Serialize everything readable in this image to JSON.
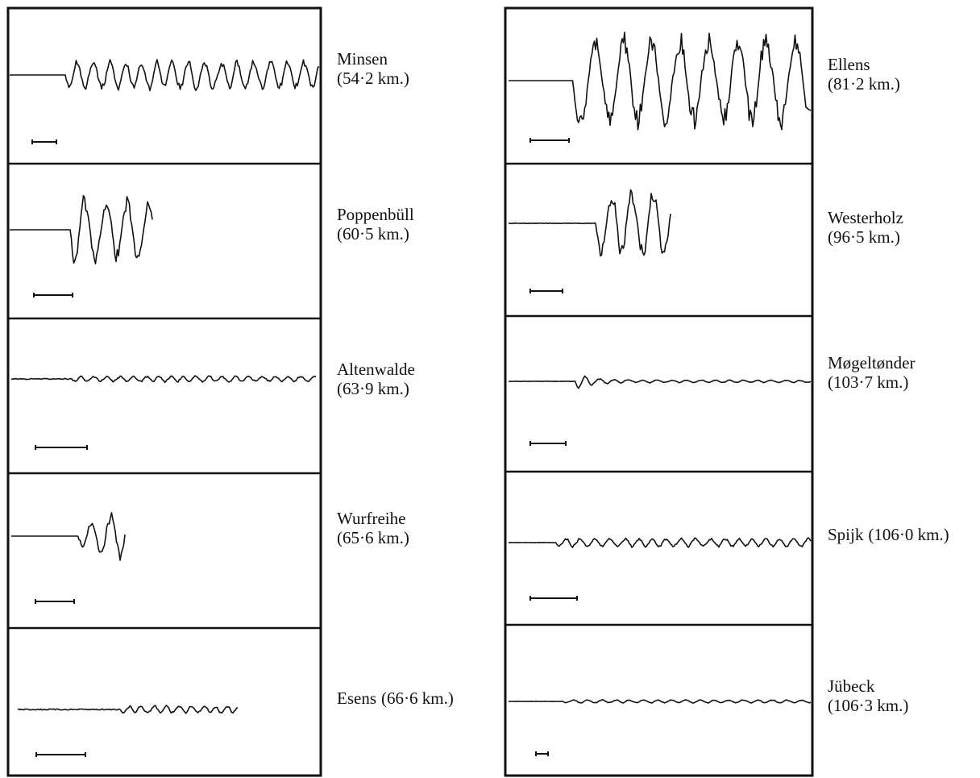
{
  "panels": [
    {
      "station": "Minsen",
      "distance": "(54·2 km.)"
    },
    {
      "station": "Poppenbüll",
      "distance": "(60·5 km.)"
    },
    {
      "station": "Altenwalde",
      "distance": "(63·9 km.)"
    },
    {
      "station": "Wurfreihe",
      "distance": "(65·6 km.)"
    },
    {
      "station": "Esens",
      "distance": "(66·6 km.)"
    },
    {
      "station": "Ellens",
      "distance": "(81·2 km.)"
    },
    {
      "station": "Westerholz",
      "distance": "(96·5 km.)"
    },
    {
      "station": "Møgeltønder",
      "distance": "(103·7 km.)"
    },
    {
      "station": "Spijk",
      "distance": "(106·0 km.)"
    },
    {
      "station": "Jübeck",
      "distance": "(106·3 km.)"
    }
  ]
}
